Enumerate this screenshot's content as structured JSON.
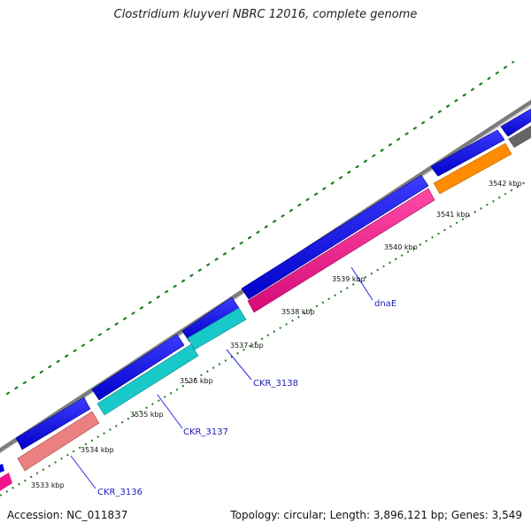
{
  "title": "Clostridium kluyveri NBRC 12016, complete genome",
  "footer": {
    "accession": "Accession: NC_011837",
    "summary": "Topology: circular; Length: 3,896,121 bp; Genes: 3,549"
  },
  "scale": {
    "unit": "kbp",
    "ticks": [
      3533,
      3534,
      3535,
      3536,
      3537,
      3538,
      3539,
      3540,
      3541,
      3542
    ]
  },
  "colors": {
    "backbone": "#808080",
    "forward_cds": "#0000e6",
    "dnaE": "#f0148c",
    "CKR_3138": "#19c8c8",
    "CKR_3137": "#19c8c8",
    "CKR_3136": "#eb8080",
    "orange_gene": "#ff8c00",
    "gray_gene": "#666666",
    "gc_skew": "#1e7d1e"
  },
  "gene_labels": [
    "dnaE",
    "CKR_3138",
    "CKR_3137",
    "CKR_3136"
  ]
}
